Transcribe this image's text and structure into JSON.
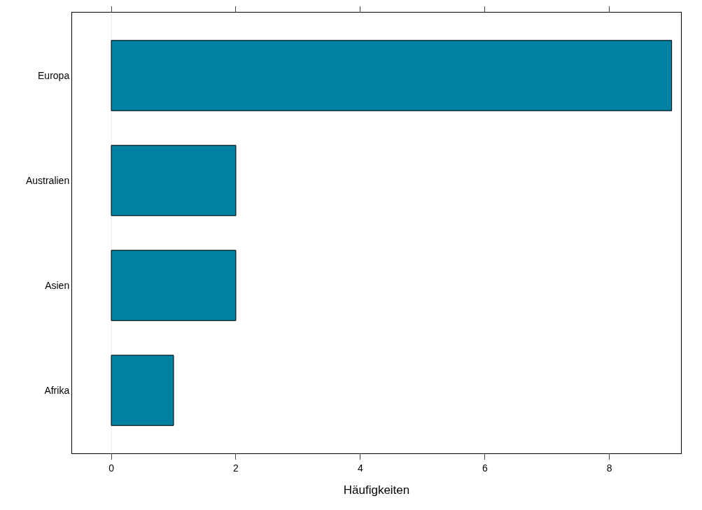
{
  "chart_data": {
    "type": "bar",
    "orientation": "horizontal",
    "xlabel": "Häufigkeiten",
    "categories": [
      "Europa",
      "Australien",
      "Asien",
      "Afrika"
    ],
    "values": [
      9,
      2,
      2,
      1
    ],
    "color": "#0081a1",
    "xlim": [
      -0.63,
      9.15
    ],
    "xticks": [
      0,
      2,
      4,
      6,
      8
    ],
    "grid": false,
    "ref_lines": [
      {
        "axis": "x",
        "value": 0,
        "color": "#e6e6e6"
      }
    ]
  }
}
